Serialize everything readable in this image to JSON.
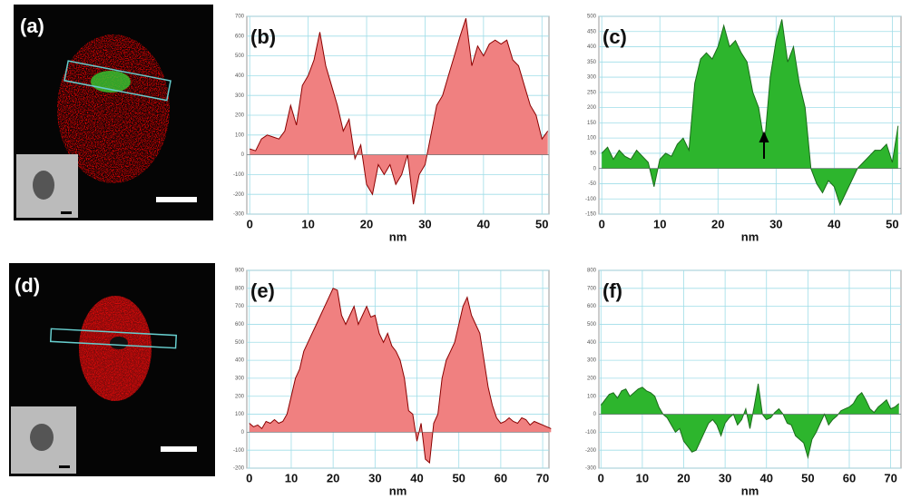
{
  "image_panels": [
    {
      "label": "(a)"
    },
    {
      "label": "(d)"
    }
  ],
  "chart_data": [
    {
      "type": "area",
      "title": "(b)",
      "x_label": "nm",
      "color": "#f08080",
      "line_color": "#8b0000",
      "x": [
        0,
        1,
        2,
        3,
        4,
        5,
        6,
        7,
        8,
        9,
        10,
        11,
        12,
        13,
        14,
        15,
        16,
        17,
        18,
        19,
        20,
        21,
        22,
        23,
        24,
        25,
        26,
        27,
        28,
        29,
        30,
        31,
        32,
        33,
        34,
        35,
        36,
        37,
        38,
        39,
        40,
        41,
        42,
        43,
        44,
        45,
        46,
        47,
        48,
        49,
        50,
        51
      ],
      "values": [
        30,
        20,
        80,
        100,
        90,
        80,
        120,
        250,
        150,
        350,
        400,
        480,
        620,
        450,
        350,
        250,
        120,
        180,
        -20,
        50,
        -150,
        -200,
        -50,
        -100,
        -50,
        -150,
        -100,
        0,
        -250,
        -100,
        -50,
        100,
        250,
        300,
        400,
        500,
        600,
        690,
        450,
        550,
        500,
        560,
        580,
        560,
        580,
        480,
        450,
        350,
        250,
        200,
        80,
        120
      ],
      "xlim": [
        -0.5,
        51.2
      ],
      "xticks": [
        0,
        10,
        20,
        30,
        40,
        50
      ],
      "ylim": [
        -300,
        700
      ],
      "yticks": [
        -300,
        -200,
        -100,
        0,
        100,
        200,
        300,
        400,
        500,
        600,
        700
      ],
      "grid": true
    },
    {
      "type": "area",
      "title": "(c)",
      "x_label": "nm",
      "color": "#2db52d",
      "line_color": "#1a6b1a",
      "x": [
        0,
        1,
        2,
        3,
        4,
        5,
        6,
        7,
        8,
        9,
        10,
        11,
        12,
        13,
        14,
        15,
        16,
        17,
        18,
        19,
        20,
        21,
        22,
        23,
        24,
        25,
        26,
        27,
        28,
        29,
        30,
        31,
        32,
        33,
        34,
        35,
        36,
        37,
        38,
        39,
        40,
        41,
        42,
        43,
        44,
        45,
        46,
        47,
        48,
        49,
        50,
        51
      ],
      "values": [
        50,
        70,
        30,
        60,
        40,
        30,
        60,
        40,
        20,
        -60,
        30,
        50,
        40,
        80,
        100,
        60,
        280,
        360,
        380,
        360,
        400,
        470,
        400,
        420,
        380,
        350,
        250,
        200,
        80,
        300,
        420,
        490,
        350,
        400,
        280,
        200,
        0,
        -50,
        -80,
        -40,
        -60,
        -120,
        -80,
        -40,
        0,
        20,
        40,
        60,
        60,
        80,
        20,
        140
      ],
      "xlim": [
        -0.5,
        51.5
      ],
      "xticks": [
        0,
        10,
        20,
        30,
        40,
        50
      ],
      "ylim": [
        -150,
        500
      ],
      "yticks": [
        -150,
        -100,
        -50,
        0,
        50,
        100,
        150,
        200,
        250,
        300,
        350,
        400,
        450,
        500
      ],
      "grid": true
    },
    {
      "type": "area",
      "title": "(e)",
      "x_label": "nm",
      "color": "#f08080",
      "line_color": "#8b0000",
      "x": [
        0,
        1,
        2,
        3,
        4,
        5,
        6,
        7,
        8,
        9,
        10,
        11,
        12,
        13,
        14,
        15,
        16,
        17,
        18,
        19,
        20,
        21,
        22,
        23,
        24,
        25,
        26,
        27,
        28,
        29,
        30,
        31,
        32,
        33,
        34,
        35,
        36,
        37,
        38,
        39,
        40,
        41,
        42,
        43,
        44,
        45,
        46,
        47,
        48,
        49,
        50,
        51,
        52,
        53,
        54,
        55,
        56,
        57,
        58,
        59,
        60,
        61,
        62,
        63,
        64,
        65,
        66,
        67,
        68,
        69,
        70,
        71,
        72
      ],
      "values": [
        50,
        30,
        40,
        20,
        60,
        50,
        70,
        50,
        60,
        100,
        200,
        300,
        350,
        450,
        500,
        550,
        600,
        650,
        700,
        750,
        800,
        790,
        650,
        600,
        650,
        700,
        600,
        650,
        700,
        640,
        650,
        550,
        500,
        550,
        480,
        450,
        400,
        300,
        120,
        100,
        -50,
        50,
        -150,
        -170,
        50,
        100,
        300,
        400,
        450,
        500,
        600,
        700,
        750,
        650,
        600,
        550,
        400,
        250,
        150,
        80,
        50,
        60,
        80,
        60,
        50,
        80,
        70,
        40,
        60,
        50,
        40,
        30,
        20
      ],
      "xlim": [
        -0.6,
        71.5
      ],
      "xticks": [
        0,
        10,
        20,
        30,
        40,
        50,
        60,
        70
      ],
      "ylim": [
        -200,
        900
      ],
      "yticks": [
        -200,
        -100,
        0,
        100,
        200,
        300,
        400,
        500,
        600,
        700,
        800,
        900
      ],
      "grid": true
    },
    {
      "type": "area",
      "title": "(f)",
      "x_label": "nm",
      "color": "#2db52d",
      "line_color": "#1a6b1a",
      "x": [
        0,
        1,
        2,
        3,
        4,
        5,
        6,
        7,
        8,
        9,
        10,
        11,
        12,
        13,
        14,
        15,
        16,
        17,
        18,
        19,
        20,
        21,
        22,
        23,
        24,
        25,
        26,
        27,
        28,
        29,
        30,
        31,
        32,
        33,
        34,
        35,
        36,
        37,
        38,
        39,
        40,
        41,
        42,
        43,
        44,
        45,
        46,
        47,
        48,
        49,
        50,
        51,
        52,
        53,
        54,
        55,
        56,
        57,
        58,
        59,
        60,
        61,
        62,
        63,
        64,
        65,
        66,
        67,
        68,
        69,
        70,
        71,
        72
      ],
      "values": [
        50,
        80,
        110,
        120,
        90,
        130,
        140,
        100,
        120,
        140,
        150,
        130,
        120,
        100,
        40,
        0,
        -20,
        -60,
        -100,
        -80,
        -150,
        -180,
        -210,
        -200,
        -150,
        -100,
        -50,
        -30,
        -60,
        -120,
        -50,
        -20,
        0,
        -60,
        -30,
        30,
        -80,
        40,
        170,
        0,
        -30,
        -20,
        10,
        30,
        0,
        -50,
        -60,
        -120,
        -140,
        -160,
        -240,
        -140,
        -100,
        -50,
        0,
        -60,
        -30,
        -10,
        20,
        30,
        40,
        60,
        100,
        120,
        80,
        30,
        10,
        40,
        60,
        80,
        30,
        40,
        60
      ],
      "xlim": [
        -0.5,
        72.5
      ],
      "xticks": [
        0,
        10,
        20,
        30,
        40,
        50,
        60,
        70
      ],
      "ylim": [
        -300,
        800
      ],
      "yticks": [
        -300,
        -200,
        -100,
        0,
        100,
        200,
        300,
        400,
        500,
        600,
        700,
        800
      ],
      "grid": true
    }
  ]
}
